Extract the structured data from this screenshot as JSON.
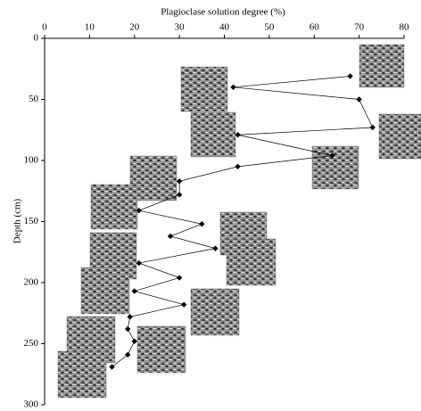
{
  "chart_data": {
    "type": "line",
    "title": "Plagioclase solution degree (%)",
    "y_label": "Depth (cm)",
    "x": [
      68,
      42,
      70,
      73,
      43,
      64,
      43,
      30,
      30,
      21,
      35,
      28,
      38,
      21,
      30,
      20,
      31,
      19,
      18.5,
      20,
      18.5,
      15
    ],
    "y": [
      31,
      40,
      50,
      73,
      79,
      96,
      105,
      117,
      128,
      141,
      152,
      162,
      172,
      184,
      196,
      207,
      218,
      228,
      238,
      248,
      259,
      269
    ],
    "color": "#000000",
    "xlim": [
      0,
      80
    ],
    "xticks": [
      0,
      10,
      20,
      30,
      40,
      50,
      60,
      70,
      80
    ],
    "ylim": [
      0,
      300
    ],
    "yticks": [
      0,
      50,
      100,
      150,
      200,
      250,
      300
    ],
    "y_inverted": true,
    "x_axis_position": "top"
  }
}
